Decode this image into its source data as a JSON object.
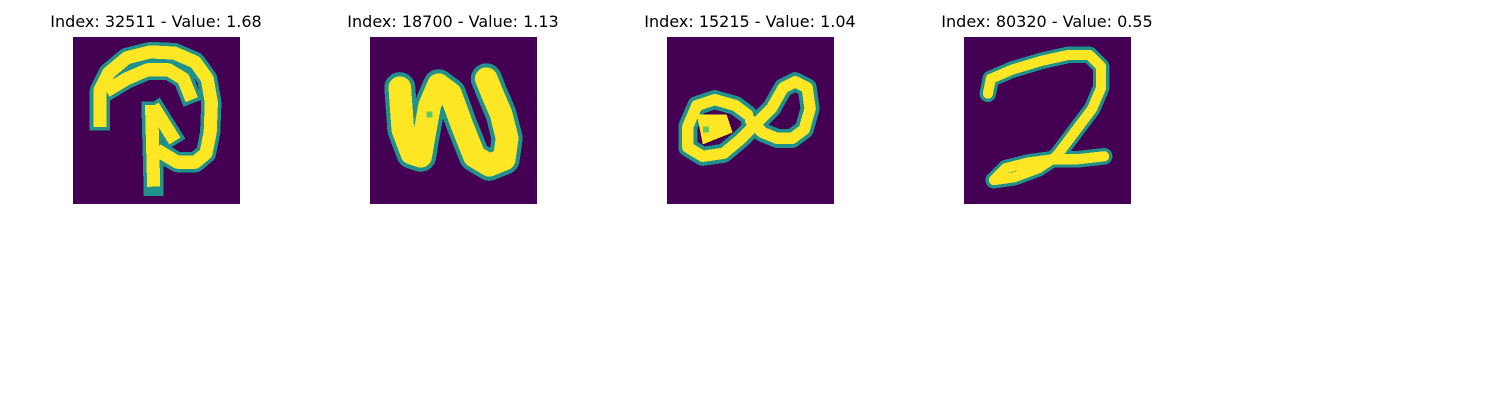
{
  "colors": {
    "background": "#440154",
    "stroke_edge": "#21918c",
    "stroke_mid": "#5ec962",
    "stroke_core": "#fde725"
  },
  "panels": [
    {
      "title": "Index: 32511 - Value: 1.68",
      "glyph": "handwritten-D-shape"
    },
    {
      "title": "Index: 18700 - Value: 1.13",
      "glyph": "handwritten-N-shape"
    },
    {
      "title": "Index: 15215 - Value: 1.04",
      "glyph": "handwritten-infinity-shape"
    },
    {
      "title": "Index: 80320 - Value: 0.55",
      "glyph": "handwritten-2-shape"
    }
  ]
}
